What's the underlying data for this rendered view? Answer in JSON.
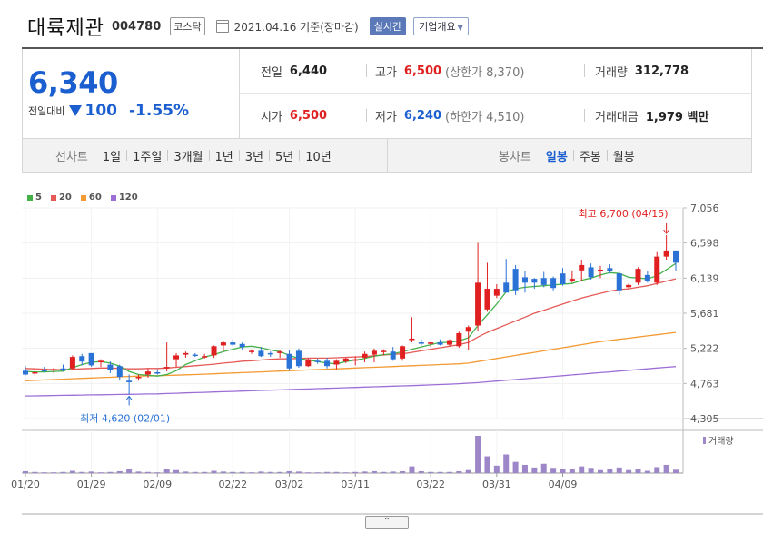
{
  "header": {
    "name": "대륙제관",
    "code": "004780",
    "market": "코스닥",
    "date_text": "2021.04.16 기준(장마감)",
    "realtime_btn": "실시간",
    "company_btn": "기업개요"
  },
  "price": {
    "current": "6,340",
    "diff_label": "전일대비",
    "diff": "100",
    "rate": "-1.55%"
  },
  "stats": {
    "prev_label": "전일",
    "prev": "6,440",
    "high_label": "고가",
    "high": "6,500",
    "upper_limit": "(상한가 8,370)",
    "volume_label": "거래량",
    "volume": "312,778",
    "open_label": "시가",
    "open": "6,500",
    "low_label": "저가",
    "low": "6,240",
    "lower_limit": "(하한가 4,510)",
    "amount_label": "거래대금",
    "amount": "1,979 백만"
  },
  "tabs": {
    "line_label": "선차트",
    "line": [
      "1일",
      "1주일",
      "3개월",
      "1년",
      "3년",
      "5년",
      "10년"
    ],
    "candle_label": "봉차트",
    "candle": [
      "일봉",
      "주봉",
      "월봉"
    ],
    "candle_active": 0
  },
  "legend": [
    {
      "label": "5",
      "color": "#43b14a"
    },
    {
      "label": "20",
      "color": "#e45a57"
    },
    {
      "label": "60",
      "color": "#f39a33"
    },
    {
      "label": "120",
      "color": "#9d6fd6"
    }
  ],
  "colors": {
    "up": "#e02020",
    "down": "#2a72d6",
    "ma5": "#43b14a",
    "ma20": "#e45a57",
    "ma60": "#f39a33",
    "ma120": "#9d6fd6",
    "volume": "#9d87c8"
  },
  "chart_data": {
    "type": "candlestick",
    "y_ticks": [
      "7,056",
      "6,598",
      "6,139",
      "5,681",
      "5,222",
      "4,763",
      "4,305"
    ],
    "ylim": [
      4305,
      7056
    ],
    "x_ticks": [
      "01/20",
      "01/29",
      "02/09",
      "02/22",
      "03/02",
      "03/11",
      "03/22",
      "03/31",
      "04/09"
    ],
    "max_annotation": "최고 6,700 (04/15)",
    "min_annotation": "최저 4,620 (02/01)",
    "volume_label": "거래량",
    "candles": [
      {
        "o": 4930,
        "h": 4990,
        "l": 4870,
        "c": 4880
      },
      {
        "o": 4900,
        "h": 4960,
        "l": 4860,
        "c": 4910
      },
      {
        "o": 4940,
        "h": 4980,
        "l": 4910,
        "c": 4930
      },
      {
        "o": 4940,
        "h": 4970,
        "l": 4900,
        "c": 4950
      },
      {
        "o": 4960,
        "h": 5010,
        "l": 4920,
        "c": 4950
      },
      {
        "o": 4960,
        "h": 5130,
        "l": 4940,
        "c": 5110
      },
      {
        "o": 5120,
        "h": 5150,
        "l": 5000,
        "c": 5050
      },
      {
        "o": 5160,
        "h": 5160,
        "l": 4980,
        "c": 5000
      },
      {
        "o": 5040,
        "h": 5080,
        "l": 4980,
        "c": 5060
      },
      {
        "o": 5010,
        "h": 5050,
        "l": 4900,
        "c": 4940
      },
      {
        "o": 4990,
        "h": 5010,
        "l": 4800,
        "c": 4850
      },
      {
        "o": 4800,
        "h": 4880,
        "l": 4620,
        "c": 4780
      },
      {
        "o": 4840,
        "h": 4880,
        "l": 4800,
        "c": 4850
      },
      {
        "o": 4880,
        "h": 4960,
        "l": 4840,
        "c": 4920
      },
      {
        "o": 4910,
        "h": 4950,
        "l": 4880,
        "c": 4900
      },
      {
        "o": 4960,
        "h": 5300,
        "l": 4920,
        "c": 4980
      },
      {
        "o": 5080,
        "h": 5160,
        "l": 4980,
        "c": 5130
      },
      {
        "o": 5140,
        "h": 5180,
        "l": 5100,
        "c": 5160
      },
      {
        "o": 5140,
        "h": 5160,
        "l": 5110,
        "c": 5130
      },
      {
        "o": 5120,
        "h": 5150,
        "l": 5090,
        "c": 5120
      },
      {
        "o": 5130,
        "h": 5260,
        "l": 5100,
        "c": 5250
      },
      {
        "o": 5260,
        "h": 5320,
        "l": 5180,
        "c": 5300
      },
      {
        "o": 5300,
        "h": 5340,
        "l": 5250,
        "c": 5270
      },
      {
        "o": 5280,
        "h": 5300,
        "l": 5200,
        "c": 5240
      },
      {
        "o": 5190,
        "h": 5210,
        "l": 5150,
        "c": 5190
      },
      {
        "o": 5190,
        "h": 5240,
        "l": 5110,
        "c": 5120
      },
      {
        "o": 5160,
        "h": 5180,
        "l": 5110,
        "c": 5150
      },
      {
        "o": 5160,
        "h": 5200,
        "l": 5100,
        "c": 5180
      },
      {
        "o": 5150,
        "h": 5200,
        "l": 4930,
        "c": 4960
      },
      {
        "o": 5190,
        "h": 5220,
        "l": 4970,
        "c": 4990
      },
      {
        "o": 4990,
        "h": 5090,
        "l": 4980,
        "c": 5080
      },
      {
        "o": 5060,
        "h": 5090,
        "l": 5020,
        "c": 5050
      },
      {
        "o": 5060,
        "h": 5100,
        "l": 4960,
        "c": 4990
      },
      {
        "o": 5010,
        "h": 5080,
        "l": 4950,
        "c": 5060
      },
      {
        "o": 5050,
        "h": 5100,
        "l": 5030,
        "c": 5090
      },
      {
        "o": 5060,
        "h": 5120,
        "l": 5000,
        "c": 5080
      },
      {
        "o": 5100,
        "h": 5180,
        "l": 5040,
        "c": 5150
      },
      {
        "o": 5140,
        "h": 5220,
        "l": 5040,
        "c": 5190
      },
      {
        "o": 5180,
        "h": 5210,
        "l": 5130,
        "c": 5190
      },
      {
        "o": 5180,
        "h": 5240,
        "l": 5060,
        "c": 5080
      },
      {
        "o": 5090,
        "h": 5260,
        "l": 5060,
        "c": 5250
      },
      {
        "o": 5330,
        "h": 5630,
        "l": 5300,
        "c": 5350
      },
      {
        "o": 5300,
        "h": 5340,
        "l": 5260,
        "c": 5290
      },
      {
        "o": 5280,
        "h": 5310,
        "l": 5240,
        "c": 5300
      },
      {
        "o": 5300,
        "h": 5340,
        "l": 5260,
        "c": 5270
      },
      {
        "o": 5270,
        "h": 5340,
        "l": 5250,
        "c": 5330
      },
      {
        "o": 5250,
        "h": 5440,
        "l": 5230,
        "c": 5420
      },
      {
        "o": 5440,
        "h": 5520,
        "l": 5200,
        "c": 5500
      },
      {
        "o": 5520,
        "h": 6600,
        "l": 5450,
        "c": 6080
      },
      {
        "o": 5730,
        "h": 6340,
        "l": 5700,
        "c": 6000
      },
      {
        "o": 5910,
        "h": 6060,
        "l": 5880,
        "c": 6000
      },
      {
        "o": 6080,
        "h": 6390,
        "l": 5960,
        "c": 5950
      },
      {
        "o": 6260,
        "h": 6310,
        "l": 5920,
        "c": 5980
      },
      {
        "o": 6150,
        "h": 6230,
        "l": 5950,
        "c": 6080
      },
      {
        "o": 6130,
        "h": 6140,
        "l": 6000,
        "c": 6080
      },
      {
        "o": 6140,
        "h": 6220,
        "l": 6020,
        "c": 6050
      },
      {
        "o": 6140,
        "h": 6160,
        "l": 5980,
        "c": 6010
      },
      {
        "o": 6200,
        "h": 6270,
        "l": 6040,
        "c": 6060
      },
      {
        "o": 6100,
        "h": 6240,
        "l": 6080,
        "c": 6130
      },
      {
        "o": 6240,
        "h": 6380,
        "l": 6100,
        "c": 6310
      },
      {
        "o": 6280,
        "h": 6330,
        "l": 6120,
        "c": 6150
      },
      {
        "o": 6250,
        "h": 6300,
        "l": 6140,
        "c": 6250
      },
      {
        "o": 6270,
        "h": 6320,
        "l": 6200,
        "c": 6230
      },
      {
        "o": 6200,
        "h": 6230,
        "l": 5920,
        "c": 5980
      },
      {
        "o": 6020,
        "h": 6070,
        "l": 5990,
        "c": 6050
      },
      {
        "o": 6080,
        "h": 6280,
        "l": 6050,
        "c": 6260
      },
      {
        "o": 6180,
        "h": 6230,
        "l": 6080,
        "c": 6100
      },
      {
        "o": 6080,
        "h": 6490,
        "l": 6050,
        "c": 6420
      },
      {
        "o": 6420,
        "h": 6700,
        "l": 6380,
        "c": 6500
      },
      {
        "o": 6500,
        "h": 6500,
        "l": 6240,
        "c": 6340
      }
    ],
    "volumes": [
      0.05,
      0.03,
      0.02,
      0.02,
      0.03,
      0.06,
      0.03,
      0.04,
      0.02,
      0.03,
      0.05,
      0.12,
      0.04,
      0.03,
      0.02,
      0.12,
      0.08,
      0.04,
      0.03,
      0.03,
      0.06,
      0.04,
      0.03,
      0.03,
      0.02,
      0.04,
      0.03,
      0.03,
      0.05,
      0.04,
      0.02,
      0.02,
      0.03,
      0.03,
      0.02,
      0.03,
      0.04,
      0.05,
      0.03,
      0.04,
      0.05,
      0.18,
      0.05,
      0.03,
      0.03,
      0.03,
      0.05,
      0.08,
      1.0,
      0.45,
      0.2,
      0.5,
      0.3,
      0.22,
      0.15,
      0.25,
      0.14,
      0.1,
      0.1,
      0.18,
      0.14,
      0.08,
      0.1,
      0.15,
      0.08,
      0.12,
      0.06,
      0.16,
      0.22,
      0.09
    ],
    "ma5": [
      4920,
      4915,
      4915,
      4920,
      4925,
      4970,
      5010,
      5040,
      5050,
      5030,
      4990,
      4920,
      4880,
      4870,
      4860,
      4880,
      4930,
      5010,
      5060,
      5110,
      5140,
      5180,
      5210,
      5240,
      5250,
      5230,
      5200,
      5180,
      5130,
      5090,
      5070,
      5050,
      5030,
      5020,
      5050,
      5070,
      5090,
      5120,
      5140,
      5150,
      5180,
      5210,
      5240,
      5270,
      5300,
      5300,
      5320,
      5360,
      5520,
      5660,
      5800,
      5960,
      6000,
      6020,
      6030,
      6040,
      6050,
      6060,
      6070,
      6110,
      6140,
      6180,
      6210,
      6200,
      6150,
      6140,
      6130,
      6170,
      6250,
      6330
    ],
    "ma20": [
      4960,
      4955,
      4950,
      4945,
      4945,
      4950,
      4955,
      4960,
      4965,
      4965,
      4960,
      4955,
      4955,
      4960,
      4960,
      4965,
      4975,
      4985,
      4995,
      5005,
      5015,
      5030,
      5040,
      5055,
      5060,
      5070,
      5080,
      5085,
      5085,
      5090,
      5095,
      5095,
      5095,
      5100,
      5105,
      5110,
      5115,
      5125,
      5135,
      5145,
      5150,
      5170,
      5190,
      5210,
      5230,
      5250,
      5270,
      5300,
      5370,
      5430,
      5480,
      5530,
      5580,
      5630,
      5680,
      5720,
      5760,
      5800,
      5840,
      5880,
      5910,
      5940,
      5970,
      5990,
      6000,
      6020,
      6040,
      6070,
      6100,
      6130
    ],
    "ma60": [
      4800,
      4805,
      4810,
      4815,
      4820,
      4825,
      4830,
      4835,
      4840,
      4845,
      4850,
      4855,
      4860,
      4862,
      4865,
      4868,
      4872,
      4876,
      4880,
      4885,
      4890,
      4895,
      4900,
      4905,
      4910,
      4915,
      4920,
      4925,
      4930,
      4935,
      4940,
      4945,
      4950,
      4955,
      4960,
      4965,
      4970,
      4975,
      4980,
      4985,
      4990,
      4995,
      5000,
      5005,
      5010,
      5015,
      5020,
      5030,
      5050,
      5070,
      5090,
      5110,
      5130,
      5150,
      5170,
      5190,
      5210,
      5230,
      5250,
      5270,
      5290,
      5310,
      5325,
      5340,
      5355,
      5370,
      5385,
      5400,
      5415,
      5430
    ],
    "ma120": [
      4600,
      4602,
      4604,
      4606,
      4608,
      4610,
      4612,
      4614,
      4616,
      4618,
      4620,
      4622,
      4624,
      4626,
      4628,
      4632,
      4636,
      4640,
      4644,
      4648,
      4652,
      4656,
      4660,
      4664,
      4668,
      4672,
      4676,
      4680,
      4684,
      4688,
      4692,
      4696,
      4700,
      4704,
      4708,
      4712,
      4716,
      4720,
      4724,
      4728,
      4732,
      4736,
      4740,
      4745,
      4750,
      4755,
      4760,
      4767,
      4775,
      4785,
      4795,
      4805,
      4815,
      4825,
      4835,
      4845,
      4855,
      4865,
      4875,
      4885,
      4895,
      4905,
      4915,
      4925,
      4935,
      4945,
      4955,
      4965,
      4975,
      4985
    ]
  }
}
